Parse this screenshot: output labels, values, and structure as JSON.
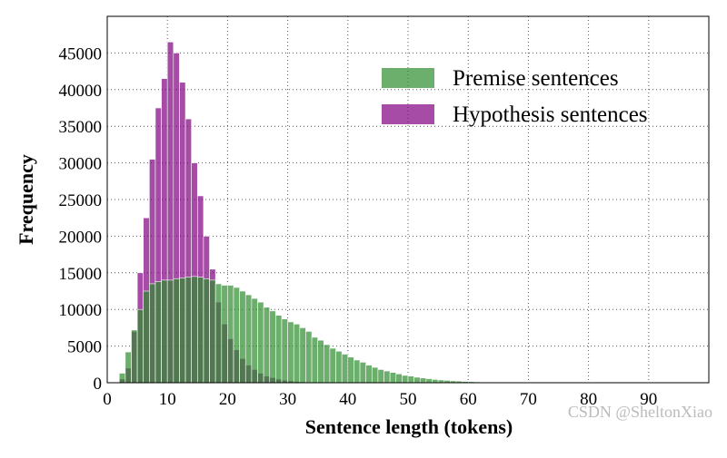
{
  "chart_data": {
    "type": "histogram",
    "xlabel": "Sentence length (tokens)",
    "ylabel": "Frequency",
    "bins": [
      2,
      3,
      4,
      5,
      6,
      7,
      8,
      9,
      10,
      11,
      12,
      13,
      14,
      15,
      16,
      17,
      18,
      19,
      20,
      21,
      22,
      23,
      24,
      25,
      26,
      27,
      28,
      29,
      30,
      31,
      32,
      33,
      34,
      35,
      36,
      37,
      38,
      39,
      40,
      41,
      42,
      43,
      44,
      45,
      46,
      47,
      48,
      49,
      50,
      51,
      52,
      53,
      54,
      55,
      56,
      57,
      58,
      59,
      60,
      61,
      62,
      63,
      64,
      65,
      66,
      67,
      68,
      69,
      70,
      71,
      72,
      73,
      74,
      75,
      76,
      77,
      78,
      79,
      80,
      81,
      82
    ],
    "series": [
      {
        "name": "Premise sentences",
        "color": "#2e8b2e",
        "values": [
          1300,
          4200,
          7200,
          10000,
          12500,
          13500,
          13800,
          14000,
          14000,
          14200,
          14300,
          14400,
          14500,
          14400,
          14200,
          14000,
          13500,
          13300,
          13300,
          13000,
          12500,
          12000,
          11500,
          11000,
          10300,
          9800,
          9200,
          8700,
          8300,
          8000,
          7500,
          7000,
          6200,
          5800,
          5200,
          4700,
          4300,
          3900,
          3500,
          3100,
          2800,
          2400,
          2100,
          1800,
          1600,
          1400,
          1200,
          1000,
          900,
          750,
          650,
          550,
          450,
          380,
          320,
          260,
          220,
          180,
          150,
          120,
          100,
          80,
          70,
          60,
          50,
          45,
          40,
          35,
          30,
          25,
          20,
          18,
          15,
          12,
          10,
          8,
          6,
          5,
          4,
          3
        ]
      },
      {
        "name": "Hypothesis sentences",
        "color": "#800080",
        "values": [
          500,
          2000,
          7000,
          15000,
          22500,
          30500,
          37500,
          41500,
          46500,
          45000,
          41000,
          36000,
          30000,
          25500,
          20000,
          15500,
          11000,
          8000,
          6000,
          4500,
          3300,
          2400,
          1800,
          1300,
          900,
          700,
          500,
          350,
          250,
          180,
          120,
          80,
          50,
          30,
          20,
          10,
          5,
          0,
          0,
          0,
          0,
          0,
          0,
          0,
          0,
          0,
          0,
          0,
          0,
          0,
          0,
          0,
          0,
          0,
          0,
          0,
          0,
          0,
          0,
          0,
          0,
          0,
          0,
          0,
          0,
          0,
          0,
          0,
          0,
          0,
          0,
          0,
          0,
          0,
          0,
          0,
          0,
          0,
          0,
          0
        ]
      }
    ],
    "xlim": [
      0,
      100
    ],
    "xticks": [
      0,
      10,
      20,
      30,
      40,
      50,
      60,
      70,
      80,
      90
    ],
    "ylim": [
      0,
      50000
    ],
    "yticks": [
      0,
      5000,
      10000,
      15000,
      20000,
      25000,
      30000,
      35000,
      40000,
      45000
    ],
    "grid": true,
    "legend": "upper right",
    "watermark": "CSDN @SheltonXiao"
  }
}
